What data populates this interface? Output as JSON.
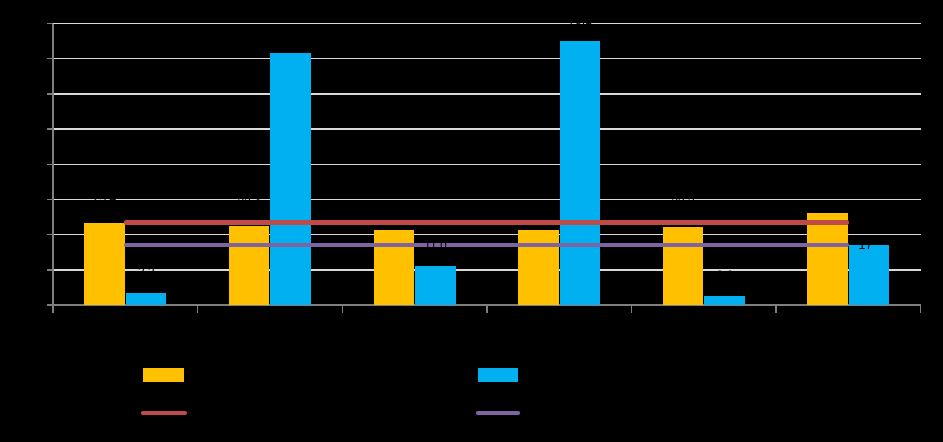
{
  "window": {
    "background": "#000000"
  },
  "chart_data": {
    "type": "bar",
    "title": "",
    "categories": [
      "",
      "",
      "",
      "",
      "",
      ""
    ],
    "series": [
      {
        "name": "",
        "type": "bar",
        "color": "#FFC000",
        "values": [
          23.4,
          22.4,
          21.2,
          21.4,
          22.3,
          26.1
        ]
      },
      {
        "name": "",
        "type": "bar",
        "color": "#00B0F0",
        "values": [
          3.3,
          71.7,
          11.0,
          75.1,
          2.6,
          17
        ]
      },
      {
        "name": "",
        "type": "line",
        "color": "#BE4B48",
        "values": [
          23.5,
          23.5,
          23.5,
          23.5,
          23.5,
          23.5
        ]
      },
      {
        "name": "",
        "type": "line",
        "color": "#8064A2",
        "values": [
          17,
          17,
          17,
          17,
          17,
          17
        ],
        "end_label": "17"
      }
    ],
    "visible_data_label": "17",
    "ylim": [
      0,
      80
    ],
    "ytick_step": 10,
    "grid": true,
    "legend_position": "bottom",
    "axis_color": "#7F7F7F",
    "gridline_color": "#D9D9D9",
    "data_label_color": "#000000",
    "note": "Chart text (title, axis tick labels, category labels, legend labels) is black on a transparent/black background and is not legible in the screenshot; only the data label '17' at the end of the purple reference line is visible over the last blue bar. Series values are estimated from bar/line pixel geometry against the gridlines."
  },
  "legend": {
    "entries": [
      {
        "swatch": "bar",
        "series": 0,
        "label": ""
      },
      {
        "swatch": "bar",
        "series": 1,
        "label": ""
      },
      {
        "swatch": "line",
        "series": 2,
        "label": ""
      },
      {
        "swatch": "line",
        "series": 3,
        "label": ""
      }
    ]
  }
}
